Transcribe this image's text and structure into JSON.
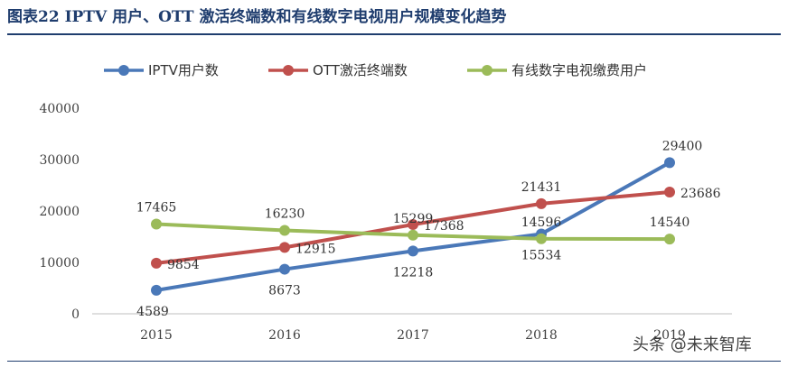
{
  "figure": {
    "title": "图表22  IPTV 用户、OTT 激活终端数和有线数字电视用户规模变化趋势",
    "watermark": "头条 @未来智库"
  },
  "colors": {
    "title": "#1f3d6e",
    "iptv": "#4a78b8",
    "ott": "#c0504d",
    "cable": "#9bbb59"
  },
  "chart_data": {
    "type": "line",
    "title": "",
    "xlabel": "",
    "ylabel": "",
    "categories": [
      "2015",
      "2016",
      "2017",
      "2018",
      "2019"
    ],
    "ylim": [
      0,
      40000
    ],
    "yticks": [
      "0",
      "10000",
      "20000",
      "30000",
      "40000"
    ],
    "grid": false,
    "legend_position": "top",
    "series": [
      {
        "name": "IPTV用户数",
        "color": "#4a78b8",
        "values": [
          4589,
          8673,
          12218,
          15534,
          29400
        ],
        "labels": [
          "4589",
          "8673",
          "12218",
          "15534",
          "29400"
        ]
      },
      {
        "name": "OTT激活终端数",
        "color": "#c0504d",
        "values": [
          9854,
          12915,
          17368,
          21431,
          23686
        ],
        "labels": [
          "9854",
          "12915",
          "17368",
          "21431",
          "23686"
        ]
      },
      {
        "name": "有线数字电视缴费用户",
        "color": "#9bbb59",
        "values": [
          17465,
          16230,
          15299,
          14596,
          14540
        ],
        "labels": [
          "17465",
          "16230",
          "15299",
          "14596",
          "14540"
        ]
      }
    ]
  }
}
